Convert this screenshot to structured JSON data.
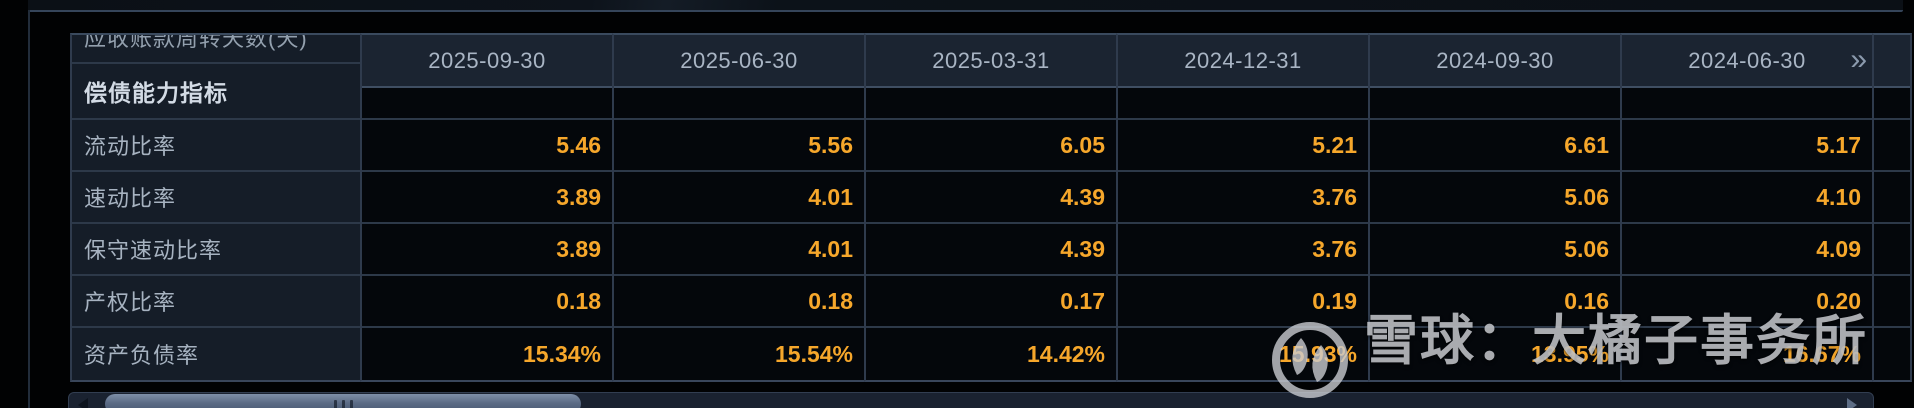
{
  "table": {
    "clipped_row_label": "应收账款周转天数(天)",
    "section_title": "偿债能力指标",
    "columns": [
      "2025-09-30",
      "2025-06-30",
      "2025-03-31",
      "2024-12-31",
      "2024-09-30",
      "2024-06-30"
    ],
    "more_icon": "»",
    "rows": [
      {
        "label": "流动比率",
        "values": [
          "5.46",
          "5.56",
          "6.05",
          "5.21",
          "6.61",
          "5.17"
        ]
      },
      {
        "label": "速动比率",
        "values": [
          "3.89",
          "4.01",
          "4.39",
          "3.76",
          "5.06",
          "4.10"
        ]
      },
      {
        "label": "保守速动比率",
        "values": [
          "3.89",
          "4.01",
          "4.39",
          "3.76",
          "5.06",
          "4.09"
        ]
      },
      {
        "label": "产权比率",
        "values": [
          "0.18",
          "0.18",
          "0.17",
          "0.19",
          "0.16",
          "0.20"
        ]
      },
      {
        "label": "资产负债率",
        "values": [
          "15.34%",
          "15.54%",
          "14.42%",
          "15.93%",
          "13.95%",
          "16.67%"
        ]
      }
    ]
  },
  "watermark": {
    "text": "雪球：大橘子事务所"
  },
  "colors": {
    "value_text": "#f6a72b",
    "date_text": "#a9b5c4",
    "header_bg": "#1b2431",
    "label_cell_bg": "#151d28",
    "data_cell_bg": "#04070b",
    "grid_border": "#2d3949"
  }
}
